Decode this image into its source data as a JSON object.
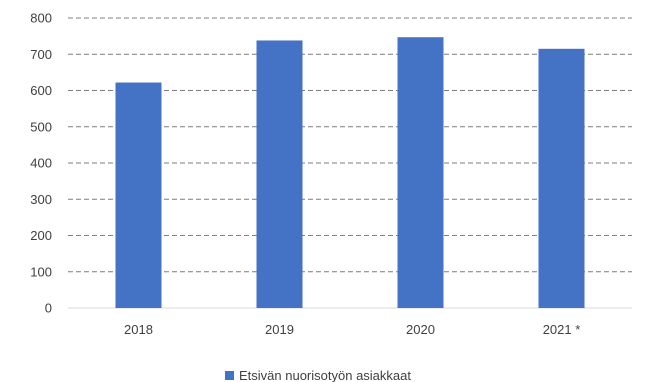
{
  "chart_data": {
    "type": "bar",
    "categories": [
      "2018",
      "2019",
      "2020",
      "2021 *"
    ],
    "series": [
      {
        "name": "Etsivän nuorisotyön asiakkaat",
        "values": [
          622,
          738,
          747,
          715
        ],
        "color": "#4472c4"
      }
    ],
    "y_ticks": [
      "0",
      "100",
      "200",
      "300",
      "400",
      "500",
      "600",
      "700",
      "800"
    ],
    "ylim": [
      0,
      800
    ],
    "grid": true,
    "grid_color": "#7f7f7f",
    "legend_position": "bottom",
    "title": "",
    "xlabel": "",
    "ylabel": ""
  }
}
